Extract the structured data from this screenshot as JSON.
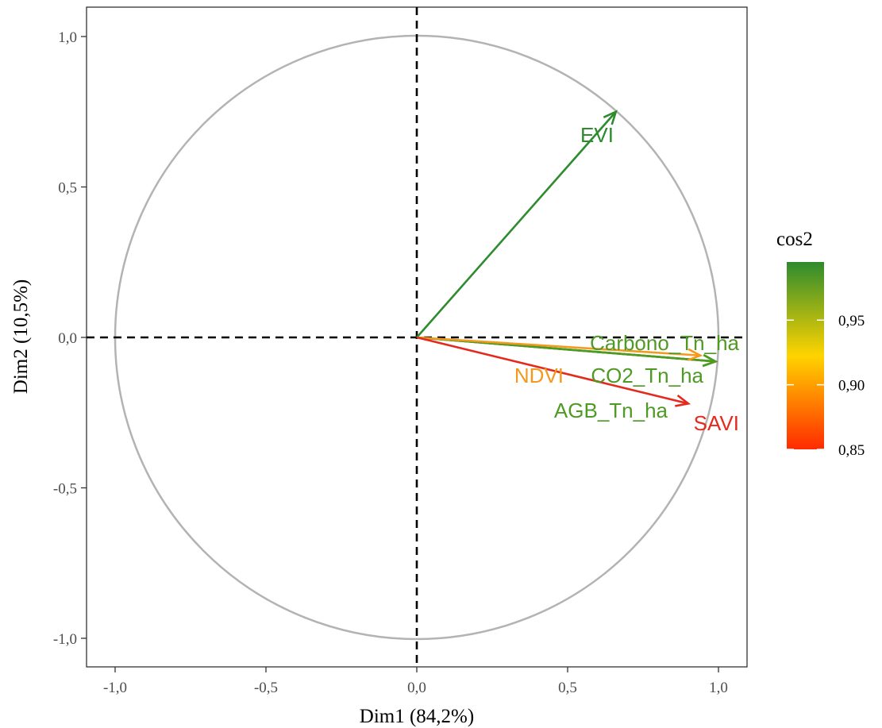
{
  "chart_data": {
    "type": "scatter",
    "subtype": "pca-correlation-circle",
    "xlabel": "Dim1 (84,2%)",
    "ylabel": "Dim2 (10,5%)",
    "xlim": [
      -1.1,
      1.1
    ],
    "ylim": [
      -1.1,
      1.1
    ],
    "x_ticks": [
      -1.0,
      -0.5,
      0.0,
      0.5,
      1.0
    ],
    "x_tick_labels": [
      "-1,0",
      "-0,5",
      "0,0",
      "0,5",
      "1,0"
    ],
    "y_ticks": [
      -1.0,
      -0.5,
      0.0,
      0.5,
      1.0
    ],
    "y_tick_labels": [
      "-1,0",
      "-0,5",
      "0,0",
      "0,5",
      "1,0"
    ],
    "grid": false,
    "unit_circle": true,
    "variables": [
      {
        "name": "EVI",
        "x": 0.66,
        "y": 0.75,
        "cos2": 0.995,
        "color": "#2e8b2e"
      },
      {
        "name": "Carbono_Tn_ha",
        "x": 0.99,
        "y": -0.08,
        "cos2": 0.98,
        "color": "#4f9a23"
      },
      {
        "name": "CO2_Tn_ha",
        "x": 0.99,
        "y": -0.08,
        "cos2": 0.98,
        "color": "#4f9a23"
      },
      {
        "name": "AGB_Tn_ha",
        "x": 0.99,
        "y": -0.08,
        "cos2": 0.98,
        "color": "#4f9a23"
      },
      {
        "name": "NDVI",
        "x": 0.94,
        "y": -0.06,
        "cos2": 0.89,
        "color": "#f39a1e"
      },
      {
        "name": "SAVI",
        "x": 0.9,
        "y": -0.22,
        "cos2": 0.86,
        "color": "#e42a1c"
      }
    ],
    "legend": {
      "title": "cos2",
      "position": "right",
      "range": [
        0.85,
        0.995
      ],
      "ticks": [
        0.85,
        0.9,
        0.95
      ],
      "tick_labels": [
        "0,85",
        "0,90",
        "0,95"
      ],
      "colors": [
        "#ff2a00",
        "#ffd400",
        "#2e8b2e"
      ]
    }
  }
}
